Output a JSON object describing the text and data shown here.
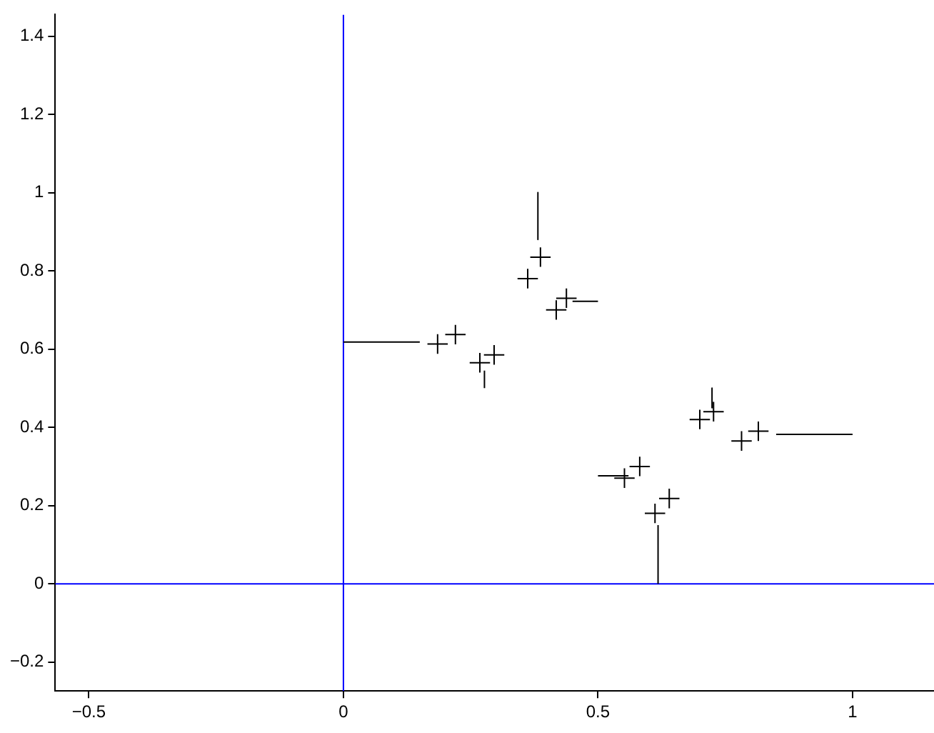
{
  "chart_data": {
    "type": "line",
    "grid": false,
    "legend": false,
    "marker": "none",
    "line_style": "solid",
    "xlim": [
      -0.566,
      1.16
    ],
    "ylim": [
      -0.274,
      1.455
    ],
    "xticks": [
      {
        "value": -0.5,
        "label": "−0.5"
      },
      0,
      0.5,
      1
    ],
    "yticks": [
      {
        "value": -0.2,
        "label": "−0.2"
      },
      0,
      0.2,
      0.4,
      0.6,
      0.8,
      1,
      1.2,
      1.4
    ],
    "series": [
      {
        "color": "#000000",
        "x": [
          0,
          0.15,
          null,
          0.382,
          0.382,
          null,
          0.5,
          0.45,
          null,
          0.277,
          0.277,
          null,
          0.618,
          0.618,
          null,
          1,
          0.85,
          null,
          0.5,
          0.56,
          null,
          0.724,
          0.724,
          null,
          0.165,
          0.205,
          null,
          0.185,
          0.185,
          null,
          0.2,
          0.24,
          null,
          0.22,
          0.22,
          null,
          0.248,
          0.288,
          null,
          0.268,
          0.268,
          null,
          0.276,
          0.316,
          null,
          0.296,
          0.296,
          null,
          0.342,
          0.382,
          null,
          0.362,
          0.362,
          null,
          0.367,
          0.407,
          null,
          0.387,
          0.387,
          null,
          0.398,
          0.438,
          null,
          0.418,
          0.418,
          null,
          0.418,
          0.458,
          null,
          0.438,
          0.438,
          null,
          0.532,
          0.572,
          null,
          0.552,
          0.552,
          null,
          0.562,
          0.602,
          null,
          0.582,
          0.582,
          null,
          0.592,
          0.632,
          null,
          0.612,
          0.612,
          null,
          0.62,
          0.66,
          null,
          0.64,
          0.64,
          null,
          0.68,
          0.72,
          null,
          0.7,
          0.7,
          null,
          0.707,
          0.747,
          null,
          0.727,
          0.727,
          null,
          0.762,
          0.802,
          null,
          0.782,
          0.782,
          null,
          0.795,
          0.835,
          null,
          0.815,
          0.815,
          null
        ],
        "values": [
          0.618,
          0.618,
          null,
          1,
          0.88,
          null,
          0.722,
          0.722,
          null,
          0.5,
          0.545,
          null,
          0,
          0.15,
          null,
          0.382,
          0.382,
          null,
          0.276,
          0.276,
          null,
          0.5,
          0.45,
          null,
          0.613,
          0.613,
          null,
          0.588,
          0.638,
          null,
          0.637,
          0.637,
          null,
          0.612,
          0.662,
          null,
          0.565,
          0.565,
          null,
          0.54,
          0.59,
          null,
          0.585,
          0.585,
          null,
          0.56,
          0.61,
          null,
          0.78,
          0.78,
          null,
          0.755,
          0.805,
          null,
          0.835,
          0.835,
          null,
          0.81,
          0.86,
          null,
          0.7,
          0.7,
          null,
          0.675,
          0.725,
          null,
          0.73,
          0.73,
          null,
          0.705,
          0.755,
          null,
          0.27,
          0.27,
          null,
          0.245,
          0.295,
          null,
          0.3,
          0.3,
          null,
          0.275,
          0.325,
          null,
          0.18,
          0.18,
          null,
          0.155,
          0.205,
          null,
          0.218,
          0.218,
          null,
          0.193,
          0.243,
          null,
          0.42,
          0.42,
          null,
          0.395,
          0.445,
          null,
          0.44,
          0.44,
          null,
          0.415,
          0.465,
          null,
          0.365,
          0.365,
          null,
          0.34,
          0.39,
          null,
          0.39,
          0.39,
          null,
          0.365,
          0.415,
          null
        ]
      },
      {
        "color": "#0000ff",
        "x": [
          -0.566,
          1.16
        ],
        "values": [
          0,
          0
        ]
      },
      {
        "color": "#0000ff",
        "x": [
          0,
          0
        ],
        "values": [
          -0.274,
          1.455
        ]
      }
    ]
  }
}
